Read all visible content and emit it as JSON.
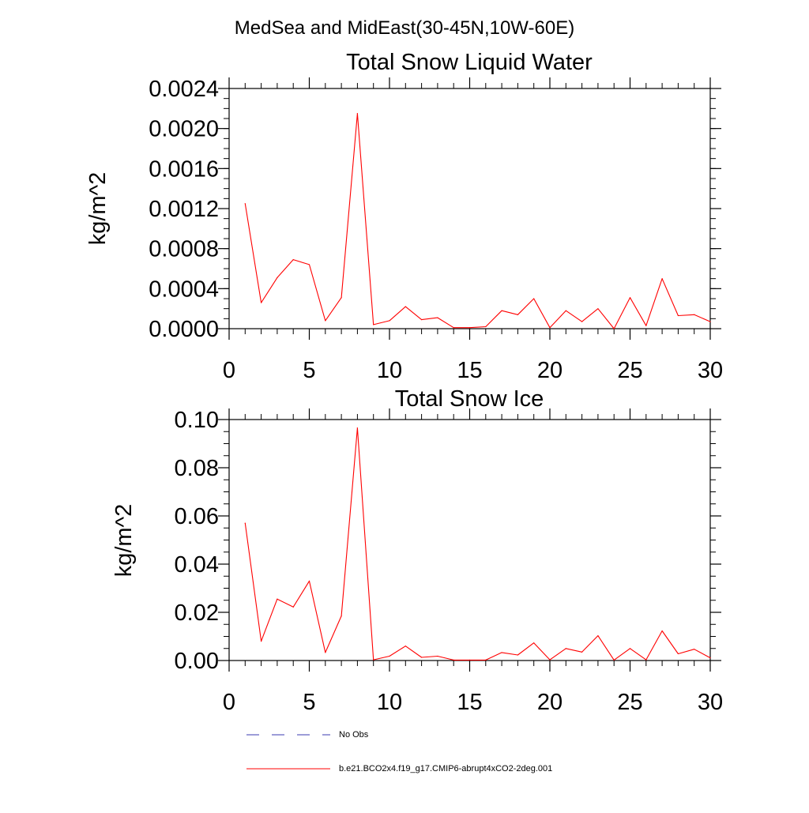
{
  "figure_title": "MedSea and MidEast(30-45N,10W-60E)",
  "colors": {
    "series_line": "#ff0000",
    "obs_line": "#3b3bb0",
    "axis": "#000000",
    "background": "#ffffff"
  },
  "legend": {
    "entries": [
      {
        "label": "No Obs",
        "style": "dashed",
        "color": "#3b3bb0"
      },
      {
        "label": "b.e21.BCO2x4.f19_g17.CMIP6-abrupt4xCO2-2deg.001",
        "style": "solid",
        "color": "#ff0000"
      }
    ]
  },
  "chart_data": [
    {
      "type": "line",
      "title": "Total Snow Liquid Water",
      "xlabel": "",
      "ylabel": "kg/m^2",
      "xlim": [
        0,
        30
      ],
      "ylim": [
        0,
        0.0024
      ],
      "grid": false,
      "x_ticks": [
        "0",
        "5",
        "10",
        "15",
        "20",
        "25",
        "30"
      ],
      "x_tick_values": [
        0,
        5,
        10,
        15,
        20,
        25,
        30
      ],
      "y_ticks": [
        "0.0000",
        "0.0004",
        "0.0008",
        "0.0012",
        "0.0016",
        "0.0020",
        "0.0024"
      ],
      "y_tick_values": [
        0,
        0.0004,
        0.0008,
        0.0012,
        0.0016,
        0.002,
        0.0024
      ],
      "x_minor_step": 1,
      "y_minor_step": 0.0001,
      "series": [
        {
          "name": "b.e21.BCO2x4.f19_g17.CMIP6-abrupt4xCO2-2deg.001",
          "x": [
            1,
            2,
            3,
            4,
            5,
            6,
            7,
            8,
            9,
            10,
            11,
            12,
            13,
            14,
            15,
            16,
            17,
            18,
            19,
            20,
            21,
            22,
            23,
            24,
            25,
            26,
            27,
            28,
            29,
            30
          ],
          "values": [
            0.00125,
            0.00026,
            0.00051,
            0.00069,
            0.00064,
            8e-05,
            0.00031,
            0.00215,
            4e-05,
            8e-05,
            0.00022,
            9e-05,
            0.00011,
            1e-05,
            1e-05,
            2e-05,
            0.00018,
            0.00014,
            0.0003,
            1e-05,
            0.00018,
            7e-05,
            0.0002,
            0.0,
            0.00031,
            3e-05,
            0.0005,
            0.00013,
            0.00014,
            7e-05
          ]
        }
      ]
    },
    {
      "type": "line",
      "title": "Total Snow Ice",
      "xlabel": "",
      "ylabel": "kg/m^2",
      "xlim": [
        0,
        30
      ],
      "ylim": [
        0,
        0.1
      ],
      "grid": false,
      "x_ticks": [
        "0",
        "5",
        "10",
        "15",
        "20",
        "25",
        "30"
      ],
      "x_tick_values": [
        0,
        5,
        10,
        15,
        20,
        25,
        30
      ],
      "y_ticks": [
        "0.00",
        "0.02",
        "0.04",
        "0.06",
        "0.08",
        "0.10"
      ],
      "y_tick_values": [
        0,
        0.02,
        0.04,
        0.06,
        0.08,
        0.1
      ],
      "x_minor_step": 1,
      "y_minor_step": 0.005,
      "series": [
        {
          "name": "b.e21.BCO2x4.f19_g17.CMIP6-abrupt4xCO2-2deg.001",
          "x": [
            1,
            2,
            3,
            4,
            5,
            6,
            7,
            8,
            9,
            10,
            11,
            12,
            13,
            14,
            15,
            16,
            17,
            18,
            19,
            20,
            21,
            22,
            23,
            24,
            25,
            26,
            27,
            28,
            29,
            30
          ],
          "values": [
            0.057,
            0.008,
            0.0255,
            0.0222,
            0.033,
            0.0033,
            0.0185,
            0.0965,
            0.0003,
            0.0018,
            0.006,
            0.0013,
            0.0018,
            0.0002,
            0.0002,
            0.0002,
            0.0033,
            0.0023,
            0.0073,
            0.0003,
            0.005,
            0.0035,
            0.0103,
            0.0002,
            0.005,
            0.0003,
            0.0123,
            0.0028,
            0.0047,
            0.0011
          ]
        }
      ]
    }
  ]
}
